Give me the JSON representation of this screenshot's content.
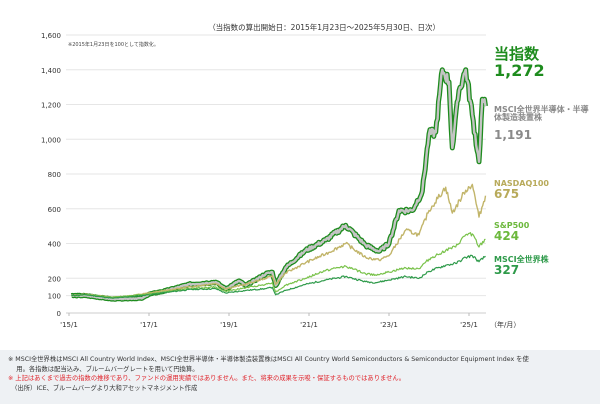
{
  "header": {
    "period": "（当指数の算出開始日：2015年1月23日～2025年5月30日、日次）",
    "note": "※2015年1月23日を100として指数化。"
  },
  "chart_data": {
    "type": "line",
    "xlabel": "（年/月）",
    "ylim": [
      0,
      1600
    ],
    "yticks": [
      0,
      100,
      200,
      400,
      600,
      800,
      1000,
      1200,
      1400,
      1600
    ],
    "ytick_labels": [
      "0",
      "100",
      "200",
      "400",
      "600",
      "800",
      "1,000",
      "1,200",
      "1,400",
      "1,600"
    ],
    "xticks": [
      "2015-01",
      "2017-01",
      "2019-01",
      "2021-01",
      "2023-01",
      "2025-01"
    ],
    "xtick_labels": [
      "'15/1",
      "'17/1",
      "'19/1",
      "'21/1",
      "'23/1",
      "'25/1"
    ],
    "grid": true,
    "legend": "right-end labels",
    "series": [
      {
        "name": "MSCI全世界株",
        "value_label": "327",
        "color": "#2e9a4a",
        "x": [
          "2015-01-23",
          "2015-06",
          "2016-02",
          "2016-06",
          "2017-01",
          "2018-01",
          "2018-09",
          "2018-12",
          "2019-06",
          "2019-12",
          "2020-02",
          "2020-03",
          "2020-06",
          "2020-12",
          "2021-06",
          "2021-12",
          "2022-06",
          "2022-09",
          "2023-01",
          "2023-06",
          "2023-10",
          "2024-01",
          "2024-06",
          "2024-09",
          "2024-12",
          "2025-02",
          "2025-04",
          "2025-05-30"
        ],
        "y": [
          100,
          105,
          85,
          92,
          105,
          135,
          140,
          115,
          130,
          140,
          148,
          105,
          130,
          165,
          190,
          210,
          180,
          175,
          190,
          210,
          200,
          240,
          275,
          285,
          320,
          330,
          295,
          327
        ]
      },
      {
        "name": "S&P500",
        "value_label": "424",
        "color": "#79c24a",
        "x": [
          "2015-01-23",
          "2015-06",
          "2016-02",
          "2016-06",
          "2017-01",
          "2018-01",
          "2018-09",
          "2018-12",
          "2019-06",
          "2019-12",
          "2020-02",
          "2020-03",
          "2020-06",
          "2020-12",
          "2021-06",
          "2021-12",
          "2022-06",
          "2022-09",
          "2023-01",
          "2023-06",
          "2023-10",
          "2024-01",
          "2024-06",
          "2024-09",
          "2024-12",
          "2025-02",
          "2025-04",
          "2025-05-30"
        ],
        "y": [
          100,
          106,
          90,
          98,
          110,
          140,
          150,
          125,
          145,
          165,
          175,
          120,
          160,
          200,
          245,
          270,
          225,
          220,
          235,
          260,
          255,
          310,
          360,
          380,
          450,
          455,
          380,
          424
        ]
      },
      {
        "name": "NASDAQ100",
        "value_label": "675",
        "color": "#c2b56a",
        "x": [
          "2015-01-23",
          "2015-06",
          "2016-02",
          "2016-06",
          "2017-01",
          "2018-01",
          "2018-09",
          "2018-12",
          "2019-06",
          "2019-12",
          "2020-02",
          "2020-03",
          "2020-06",
          "2020-12",
          "2021-06",
          "2021-12",
          "2022-06",
          "2022-10",
          "2023-01",
          "2023-06",
          "2023-10",
          "2024-01",
          "2024-06",
          "2024-08",
          "2024-12",
          "2025-02",
          "2025-04",
          "2025-05-30"
        ],
        "y": [
          100,
          108,
          90,
          95,
          115,
          150,
          170,
          140,
          165,
          200,
          215,
          165,
          230,
          290,
          340,
          400,
          320,
          305,
          330,
          477,
          450,
          590,
          724,
          575,
          707,
          740,
          552,
          675
        ]
      },
      {
        "name": "MSCI全世界半導体・半導体製造装置株",
        "value_label": "1,191",
        "color": "#c4c4c4",
        "x": [
          "2015-01-23",
          "2015-06",
          "2016-02",
          "2016-06",
          "2016-11",
          "2017-01",
          "2017-06",
          "2018-01",
          "2018-06",
          "2018-09",
          "2018-12",
          "2019-04",
          "2019-06",
          "2019-12",
          "2020-02",
          "2020-03",
          "2020-06",
          "2020-12",
          "2021-06",
          "2021-12",
          "2022-06",
          "2022-10",
          "2023-01",
          "2023-04",
          "2023-08",
          "2023-11",
          "2024-01",
          "2024-03",
          "2024-05",
          "2024-07",
          "2024-08",
          "2024-10",
          "2024-12",
          "2025-02",
          "2025-04",
          "2025-05",
          "2025-05-30"
        ],
        "y": [
          100,
          100,
          80,
          82,
          85,
          108,
          128,
          165,
          172,
          178,
          138,
          185,
          158,
          225,
          235,
          158,
          262,
          360,
          420,
          505,
          390,
          355,
          400,
          590,
          590,
          700,
          1030,
          1040,
          1400,
          1330,
          950,
          1280,
          1400,
          1140,
          870,
          1230,
          1191
        ]
      },
      {
        "name": "当指数",
        "value_label": "1,272",
        "color": "#1e8c1e",
        "x": [
          "2015-01-23",
          "2015-06",
          "2016-02",
          "2016-06",
          "2016-11",
          "2017-01",
          "2017-06",
          "2018-01",
          "2018-06",
          "2018-09",
          "2018-12",
          "2019-04",
          "2019-06",
          "2019-12",
          "2020-02",
          "2020-03",
          "2020-06",
          "2020-12",
          "2021-06",
          "2021-12",
          "2022-06",
          "2022-10",
          "2023-01",
          "2023-04",
          "2023-08",
          "2023-11",
          "2024-01",
          "2024-03",
          "2024-05",
          "2024-07",
          "2024-08",
          "2024-10",
          "2024-12",
          "2025-02",
          "2025-04",
          "2025-05",
          "2025-05-30"
        ],
        "y": [
          100,
          100,
          80,
          80,
          85,
          110,
          130,
          170,
          180,
          185,
          140,
          190,
          160,
          230,
          240,
          160,
          270,
          370,
          430,
          523,
          400,
          362,
          410,
          610,
          610,
          724,
          1070,
          1070,
          1470,
          1380,
          977,
          1340,
          1470,
          1184,
          920,
          1300,
          1272
        ]
      }
    ]
  },
  "footer": {
    "line1": "※ MSCI全世界株はMSCI All Country World Index、MSCI全世界半導体・半導体製造装置株はMSCI All Country World Semiconductors & Semiconductor Equipment Index を使",
    "line2": "　 用。各指数は配当込み、ブルームバーグレートを用いて円換算。",
    "line3": "※ 上記はあくまで過去の指数の推移であり、ファンドの運用実績ではありません。また、将来の成果を示唆・保証するものではありません。",
    "line4": "　（出所）ICE、ブルームバーグより大和アセットマネジメント作成"
  }
}
